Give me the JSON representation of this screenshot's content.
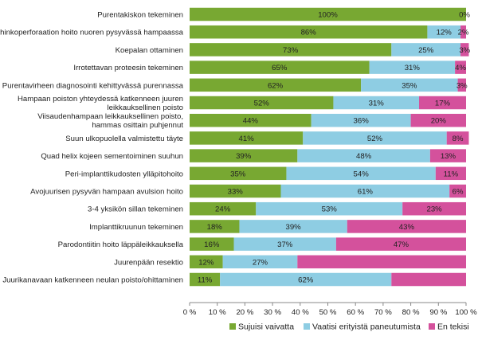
{
  "chart_data": {
    "type": "bar",
    "orientation": "horizontal",
    "stacked": true,
    "categories": [
      [
        "Purentakiskon tekeminen"
      ],
      [
        "Vahinkoperforaation hoito nuoren pysyvässä hampaassa"
      ],
      [
        "Koepalan ottaminen"
      ],
      [
        "Irrotettavan proteesin tekeminen"
      ],
      [
        "Purentavirheen diagnosointi kehittyvässä purennassa"
      ],
      [
        "Hampaan poiston yhteydessä katkenneen juuren",
        "leikkauksellinen poisto"
      ],
      [
        "Viisaudenhampaan leikkauksellinen poisto,",
        "hammas osittain puhjennut"
      ],
      [
        "Suun ulkopuolella valmistettu täyte"
      ],
      [
        "Quad helix kojeen sementoiminen suuhun"
      ],
      [
        "Peri-implanttikudosten ylläpitohoito"
      ],
      [
        "Avojuurisen pysyvän hampaan avulsion hoito"
      ],
      [
        "3-4 yksikön sillan tekeminen"
      ],
      [
        "Implanttikruunun tekeminen"
      ],
      [
        "Parodontiitin hoito läppäleikkauksella"
      ],
      [
        "Juurenpään resektio"
      ],
      [
        "Juurikanavaan katkenneen neulan poisto/ohittaminen"
      ]
    ],
    "series": [
      {
        "name": "Sujuisi vaivatta",
        "color": "#78a832",
        "values": [
          100,
          86,
          73,
          65,
          62,
          52,
          44,
          41,
          39,
          35,
          33,
          24,
          18,
          16,
          12,
          11
        ]
      },
      {
        "name": "Vaatisi erityistä paneutumista",
        "color": "#8ecde3",
        "values": [
          0,
          12,
          25,
          31,
          35,
          31,
          36,
          52,
          48,
          54,
          61,
          53,
          39,
          37,
          27,
          62
        ]
      },
      {
        "name": "En tekisi",
        "color": "#d4519c",
        "values": [
          0,
          2,
          3,
          4,
          3,
          17,
          20,
          8,
          13,
          11,
          6,
          23,
          43,
          47,
          61,
          27
        ]
      }
    ],
    "data_labels": [
      [
        "100%",
        "0%",
        ""
      ],
      [
        "86%",
        "12%",
        "2%"
      ],
      [
        "73%",
        "25%",
        "3%"
      ],
      [
        "65%",
        "31%",
        "4%"
      ],
      [
        "62%",
        "35%",
        "3%"
      ],
      [
        "52%",
        "31%",
        "17%"
      ],
      [
        "44%",
        "36%",
        "20%"
      ],
      [
        "41%",
        "52%",
        "8%"
      ],
      [
        "39%",
        "48%",
        "13%"
      ],
      [
        "35%",
        "54%",
        "11%"
      ],
      [
        "33%",
        "61%",
        "6%"
      ],
      [
        "24%",
        "53%",
        "23%"
      ],
      [
        "18%",
        "39%",
        "43%"
      ],
      [
        "16%",
        "37%",
        "47%"
      ],
      [
        "12%",
        "27%",
        ""
      ],
      [
        "11%",
        "62%",
        ""
      ]
    ],
    "xlim": [
      0,
      100
    ],
    "xticks": [
      "0 %",
      "10 %",
      "20 %",
      "30 %",
      "40 %",
      "50 %",
      "60 %",
      "70 %",
      "80 %",
      "90 %",
      "100 %"
    ],
    "title": "",
    "xlabel": "",
    "ylabel": "",
    "grid": false,
    "legend": {
      "position": "bottom-right",
      "entries": [
        "Sujuisi vaivatta",
        "Vaatisi erityistä paneutumista",
        "En tekisi"
      ]
    }
  }
}
